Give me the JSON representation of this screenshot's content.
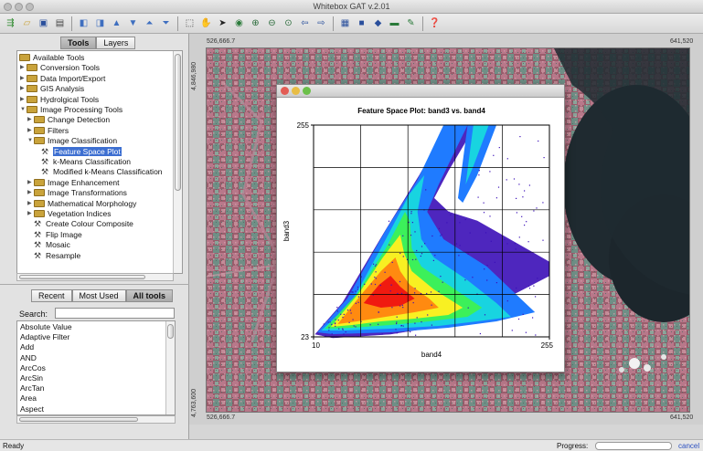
{
  "window": {
    "title": "Whitebox GAT v.2.01"
  },
  "toolbar_icons": [
    "green-arrow-icon",
    "open-folder-icon",
    "save-icon",
    "print-icon",
    "layer-add-icon",
    "layer-remove-icon",
    "layer-up-icon",
    "layer-down-icon",
    "layer-top-icon",
    "layer-bottom-icon",
    "zoom-box-icon",
    "pan-icon",
    "select-arrow-icon",
    "full-extent-icon",
    "zoom-in-icon",
    "zoom-out-icon",
    "zoom-previous-icon",
    "back-icon",
    "forward-icon",
    "table-icon",
    "raster-icon",
    "point-icon",
    "line-icon",
    "brush-icon",
    "help-icon"
  ],
  "left_panel": {
    "tabs": [
      "Tools",
      "Layers"
    ],
    "tree": [
      {
        "label": "Available Tools",
        "level": 0,
        "kind": "folder",
        "expanded": true
      },
      {
        "label": "Conversion Tools",
        "level": 1,
        "kind": "folder",
        "expanded": false
      },
      {
        "label": "Data Import/Export",
        "level": 1,
        "kind": "folder",
        "expanded": false
      },
      {
        "label": "GIS Analysis",
        "level": 1,
        "kind": "folder",
        "expanded": false
      },
      {
        "label": "Hydrolgical Tools",
        "level": 1,
        "kind": "folder",
        "expanded": false
      },
      {
        "label": "Image Processing Tools",
        "level": 1,
        "kind": "folder",
        "expanded": true
      },
      {
        "label": "Change Detection",
        "level": 2,
        "kind": "folder",
        "expanded": false
      },
      {
        "label": "Filters",
        "level": 2,
        "kind": "folder",
        "expanded": false
      },
      {
        "label": "Image Classification",
        "level": 2,
        "kind": "folder",
        "expanded": true
      },
      {
        "label": "Feature Space Plot",
        "level": 3,
        "kind": "tool",
        "selected": true
      },
      {
        "label": "k-Means Classification",
        "level": 3,
        "kind": "tool"
      },
      {
        "label": "Modified k-Means Classification",
        "level": 3,
        "kind": "tool"
      },
      {
        "label": "Image Enhancement",
        "level": 2,
        "kind": "folder",
        "expanded": false
      },
      {
        "label": "Image Transformations",
        "level": 2,
        "kind": "folder",
        "expanded": false
      },
      {
        "label": "Mathematical Morphology",
        "level": 2,
        "kind": "folder",
        "expanded": false
      },
      {
        "label": "Vegetation Indices",
        "level": 2,
        "kind": "folder",
        "expanded": false
      },
      {
        "label": "Create Colour Composite",
        "level": 2,
        "kind": "tool"
      },
      {
        "label": "Flip Image",
        "level": 2,
        "kind": "tool"
      },
      {
        "label": "Mosaic",
        "level": 2,
        "kind": "tool"
      },
      {
        "label": "Resample",
        "level": 2,
        "kind": "tool"
      }
    ],
    "tool_tabs": [
      "Recent",
      "Most Used",
      "All tools"
    ],
    "search_label": "Search:",
    "search_value": "",
    "tool_list": [
      "Absolute Value",
      "Adaptive Filter",
      "Add",
      "AND",
      "ArcCos",
      "ArcSin",
      "ArcTan",
      "Area",
      "Aspect"
    ]
  },
  "map": {
    "top_left_x": "526,666.7",
    "top_right_x": "641,520",
    "bottom_left_x": "526,666.7",
    "bottom_right_x": "641,520",
    "left_top_y": "4,846,980",
    "left_bottom_y": "4,763,600"
  },
  "dialog": {
    "window_title": "",
    "colors": {
      "close": "#e35d55",
      "minimize": "#e8bd45",
      "zoom": "#6cc04a"
    }
  },
  "chart_data": {
    "type": "heatmap",
    "title": "Feature Space Plot: band3 vs. band4",
    "xlabel": "band4",
    "ylabel": "band3",
    "xlim": [
      10,
      255
    ],
    "ylim": [
      23,
      255
    ],
    "x_tick_labels": [
      "10",
      "255"
    ],
    "y_tick_labels": [
      "23",
      "255"
    ],
    "grid": true,
    "colormap": [
      "#3b0fb8",
      "#1f7bff",
      "#18d4e0",
      "#3cf05a",
      "#f8f022",
      "#ff8a10",
      "#f01a10"
    ]
  },
  "status": {
    "text": "Ready",
    "progress_label": "Progress:",
    "progress": 0.0,
    "cancel_label": "cancel"
  }
}
